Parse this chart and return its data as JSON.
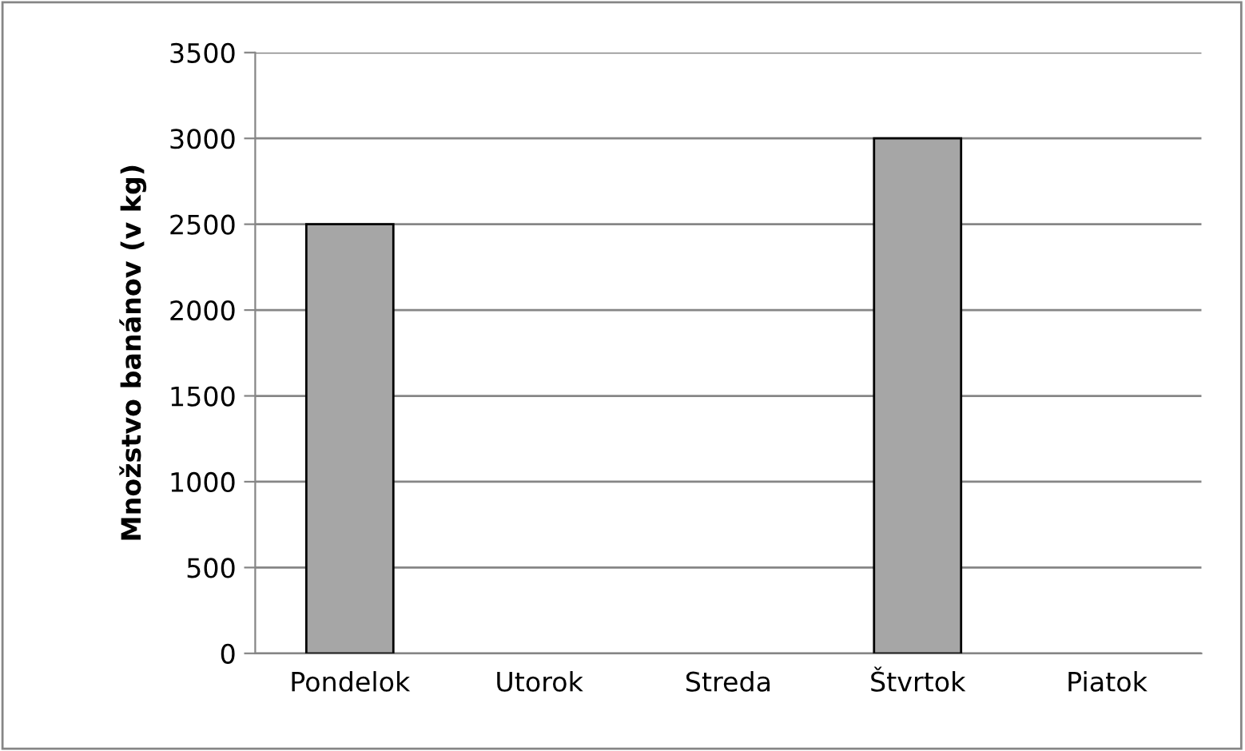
{
  "chart_data": {
    "type": "bar",
    "ylabel": "Množstvo banánov (v kg)",
    "categories": [
      "Pondelok",
      "Utorok",
      "Streda",
      "Štvrtok",
      "Piatok"
    ],
    "values": [
      2500,
      null,
      null,
      3000,
      null
    ],
    "color": "#a6a6a6",
    "ylim": [
      0,
      3500
    ],
    "yticks": [
      0,
      500,
      1000,
      1500,
      2000,
      2500,
      3000,
      3500
    ],
    "grid": "y",
    "legend": false
  }
}
